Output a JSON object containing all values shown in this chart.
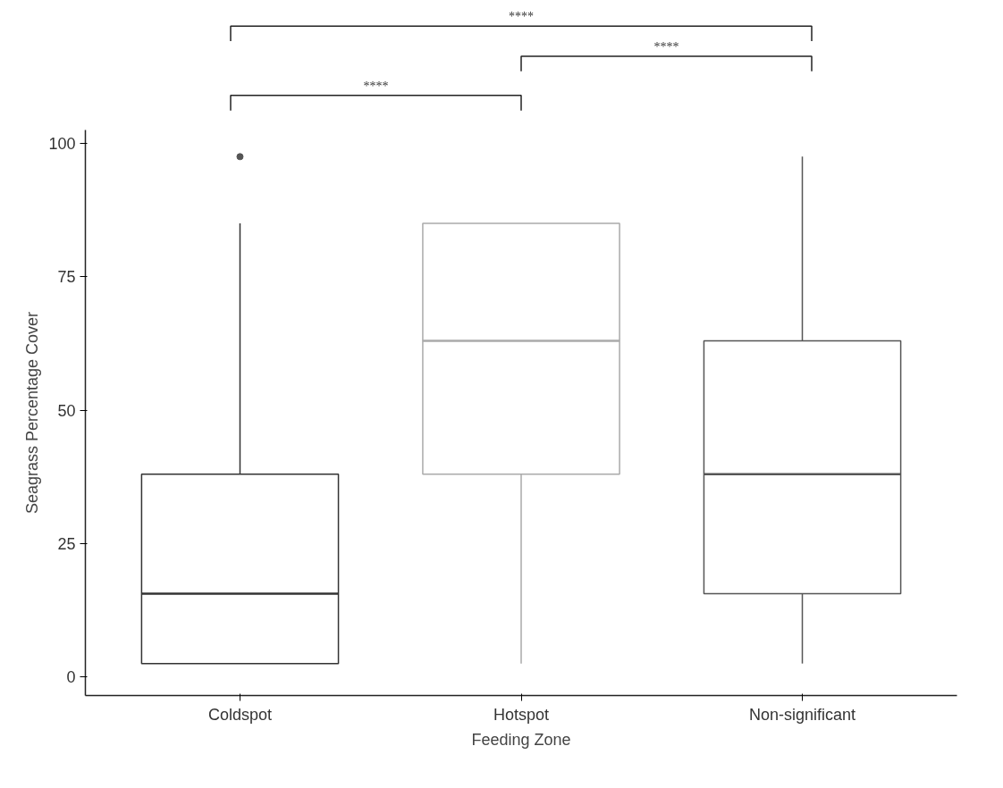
{
  "chart_data": {
    "type": "box",
    "xlabel": "Feeding Zone",
    "ylabel": "Seagrass Percentage Cover",
    "categories": [
      "Coldspot",
      "Hotspot",
      "Non-significant"
    ],
    "boxes": [
      {
        "low": 2.5,
        "q1": 2.5,
        "median": 15.6,
        "q3": 38,
        "high": 85,
        "outliers": [
          97.5
        ]
      },
      {
        "low": 2.5,
        "q1": 38,
        "median": 63,
        "q3": 85,
        "high": 85
      },
      {
        "low": 2.5,
        "q1": 15.6,
        "median": 38,
        "q3": 63,
        "high": 97.5
      }
    ],
    "colors": [
      "#333333",
      "#aaaaaa",
      "#555555"
    ],
    "ylim": [
      -3.5,
      102.5
    ],
    "yticks": [
      0,
      25,
      50,
      75,
      100
    ],
    "grid": false,
    "annotations": [
      "****",
      "****",
      "****"
    ]
  }
}
